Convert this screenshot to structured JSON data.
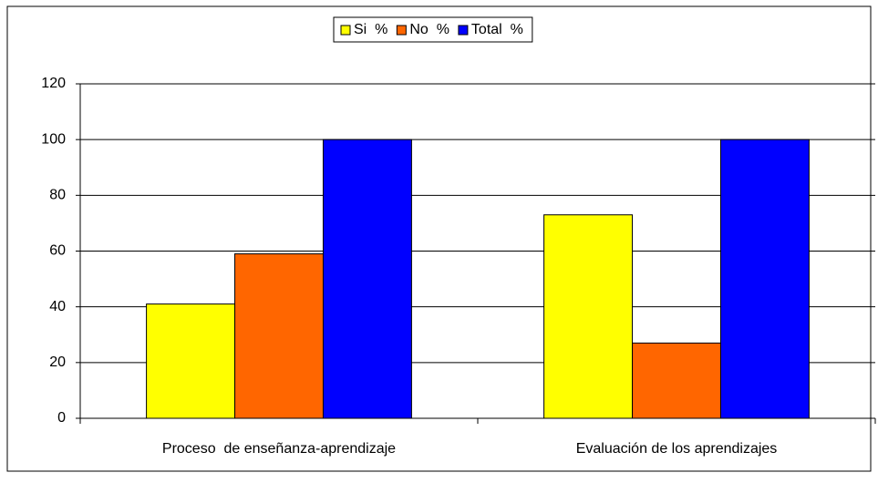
{
  "chart_data": {
    "type": "bar",
    "categories": [
      "Proceso  de enseñanza-aprendizaje",
      "Evaluación de los aprendizajes"
    ],
    "series": [
      {
        "name": "Si  %",
        "color": "#ffff00",
        "values": [
          41,
          73
        ]
      },
      {
        "name": "No  %",
        "color": "#ff6600",
        "values": [
          59,
          27
        ]
      },
      {
        "name": "Total  %",
        "color": "#0000ff",
        "values": [
          100,
          100
        ]
      }
    ],
    "ylim": [
      0,
      120
    ],
    "yticks": [
      0,
      20,
      40,
      60,
      80,
      100,
      120
    ],
    "grid": true,
    "legend": "top"
  }
}
